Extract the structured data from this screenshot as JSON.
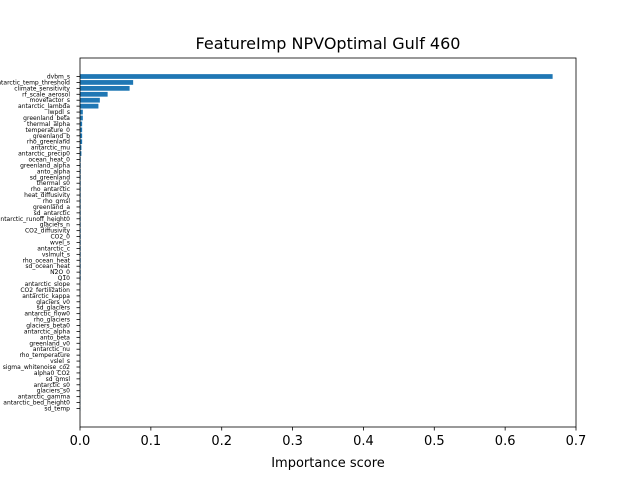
{
  "chart_data": {
    "type": "bar",
    "orientation": "horizontal",
    "title": "FeatureImp NPVOptimal Gulf 460",
    "xlabel": "Importance score",
    "ylabel": "",
    "xlim": [
      0,
      0.7
    ],
    "xticks": [
      "0.0",
      "0.1",
      "0.2",
      "0.3",
      "0.4",
      "0.5",
      "0.6",
      "0.7"
    ],
    "grid": false,
    "bar_color": "#1f77b4",
    "categories": [
      "dvbm_s",
      "antarctic_temp_threshold",
      "climate_sensitivity",
      "rf_scale_aerosol",
      "movefactor_s",
      "antarctic_lambda",
      "lwpdl_s",
      "greenland_beta",
      "thermal_alpha",
      "temperature_0",
      "greenland_b",
      "rho_greenland",
      "antarctic_mu",
      "antarctic_precip0",
      "ocean_heat_0",
      "greenland_alpha",
      "anto_alpha",
      "sd_greenland",
      "thermal_s0",
      "rho_antarctic",
      "heat_diffusivity",
      "rho_gmsl",
      "greenland_a",
      "sd_antarctic",
      "antarctic_runoff_height0",
      "glaciers_n",
      "CO2_diffusivity",
      "CO2_0",
      "wvel_s",
      "antarctic_c",
      "vslmult_s",
      "rho_ocean_heat",
      "sd_ocean_heat",
      "N2O_0",
      "Q10",
      "antarctic_slope",
      "CO2_fertilization",
      "antarctic_kappa",
      "glaciers_v0",
      "sd_glaciers",
      "antarctic_flow0",
      "rho_glaciers",
      "glaciers_beta0",
      "antarctic_alpha",
      "anto_beta",
      "greenland_v0",
      "antarctic_nu",
      "rho_temperature",
      "vslel_s",
      "sigma_whitenoise_co2",
      "alpha0_CO2",
      "sd_gmsl",
      "antarctic_s0",
      "glaciers_s0",
      "antarctic_gamma",
      "antarctic_bed_height0",
      "sd_temp"
    ],
    "values": [
      0.667,
      0.075,
      0.07,
      0.039,
      0.028,
      0.026,
      0.004,
      0.004,
      0.003,
      0.003,
      0.003,
      0.003,
      0.002,
      0.002,
      0.001,
      0.001,
      0.001,
      0.001,
      0.001,
      0.001,
      0.001,
      0.001,
      0.001,
      0.001,
      0.001,
      0.001,
      0.001,
      0.001,
      0.001,
      0.001,
      0.001,
      0.001,
      0.001,
      0.001,
      0.001,
      0.0005,
      0.0005,
      0.0005,
      0.0005,
      0.0005,
      0.0005,
      0.0005,
      0.0005,
      0.0005,
      0.0005,
      0.0005,
      0.0005,
      0.0005,
      0.0005,
      0.0005,
      0.0005,
      0.0005,
      0.0005,
      0.0005,
      0.0005,
      0.0005,
      0.0005
    ]
  }
}
